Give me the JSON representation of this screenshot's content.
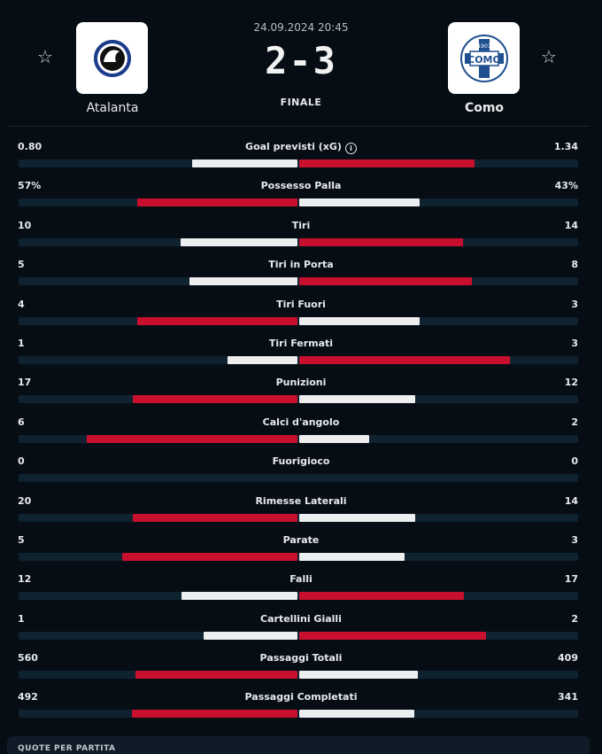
{
  "match": {
    "datetime": "24.09.2024 20:45",
    "score": "2-3",
    "status": "FINALE",
    "home": {
      "name": "Atalanta",
      "logo_icon": "atalanta-crest-icon",
      "favorite_icon": "star-outline-icon"
    },
    "away": {
      "name": "Como",
      "logo_icon": "como-crest-icon",
      "logo_text": "COMO",
      "logo_year": "1907",
      "favorite_icon": "star-outline-icon"
    }
  },
  "colors": {
    "leader": "#c8102e",
    "trailer": "#eceeef",
    "track": "#0f2230",
    "background": "#060d14"
  },
  "stats": [
    {
      "label": "Goal previsti (xG)",
      "home": "0.80",
      "away": "1.34",
      "home_share": 0.374,
      "away_share": 0.626,
      "info": true
    },
    {
      "label": "Possesso Palla",
      "home": "57%",
      "away": "43%",
      "home_share": 0.57,
      "away_share": 0.43
    },
    {
      "label": "Tiri",
      "home": "10",
      "away": "14",
      "home_share": 0.417,
      "away_share": 0.583
    },
    {
      "label": "Tiri in Porta",
      "home": "5",
      "away": "8",
      "home_share": 0.385,
      "away_share": 0.615
    },
    {
      "label": "Tiri Fuori",
      "home": "4",
      "away": "3",
      "home_share": 0.571,
      "away_share": 0.429
    },
    {
      "label": "Tiri Fermati",
      "home": "1",
      "away": "3",
      "home_share": 0.25,
      "away_share": 0.75
    },
    {
      "label": "Punizioni",
      "home": "17",
      "away": "12",
      "home_share": 0.586,
      "away_share": 0.414
    },
    {
      "label": "Calci d'angolo",
      "home": "6",
      "away": "2",
      "home_share": 0.75,
      "away_share": 0.25
    },
    {
      "label": "Fuorigioco",
      "home": "0",
      "away": "0",
      "home_share": 0,
      "away_share": 0
    },
    {
      "label": "Rimesse Laterali",
      "home": "20",
      "away": "14",
      "home_share": 0.588,
      "away_share": 0.412
    },
    {
      "label": "Parate",
      "home": "5",
      "away": "3",
      "home_share": 0.625,
      "away_share": 0.375
    },
    {
      "label": "Falli",
      "home": "12",
      "away": "17",
      "home_share": 0.414,
      "away_share": 0.586
    },
    {
      "label": "Cartellini Gialli",
      "home": "1",
      "away": "2",
      "home_share": 0.333,
      "away_share": 0.667
    },
    {
      "label": "Passaggi Totali",
      "home": "560",
      "away": "409",
      "home_share": 0.578,
      "away_share": 0.422
    },
    {
      "label": "Passaggi Completati",
      "home": "492",
      "away": "341",
      "home_share": 0.591,
      "away_share": 0.409
    }
  ],
  "bottom_panel": {
    "title": "QUOTE PER PARTITA"
  }
}
